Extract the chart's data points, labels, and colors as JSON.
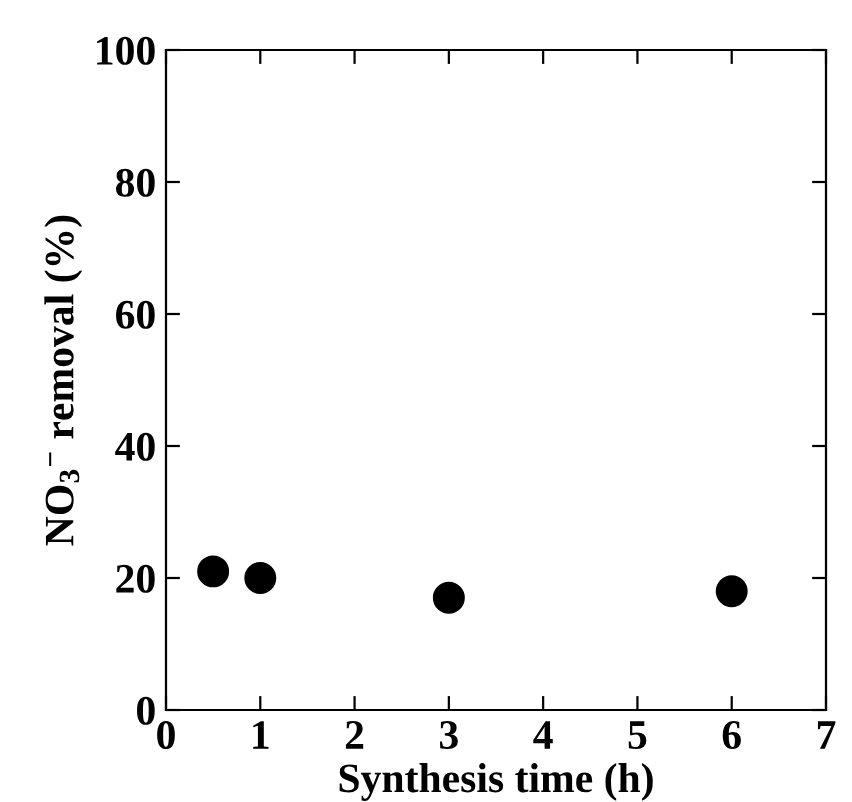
{
  "chart_data": {
    "type": "scatter",
    "xlabel": "Synthesis time (h)",
    "ylabel": "NO$_{3}$$^{−}$ removal (%)",
    "x": [
      0.5,
      1,
      3,
      6
    ],
    "series": [
      {
        "color": "#000000",
        "values": [
          21,
          20,
          17,
          18
        ]
      }
    ],
    "xlim": [
      0,
      7
    ],
    "xticks": [
      0,
      1,
      2,
      3,
      4,
      5,
      6,
      7
    ],
    "ylim": [
      0,
      100
    ],
    "yticks": [
      0,
      20,
      40,
      60,
      80,
      100
    ],
    "marker": "circle",
    "grid": false,
    "legend": false
  }
}
